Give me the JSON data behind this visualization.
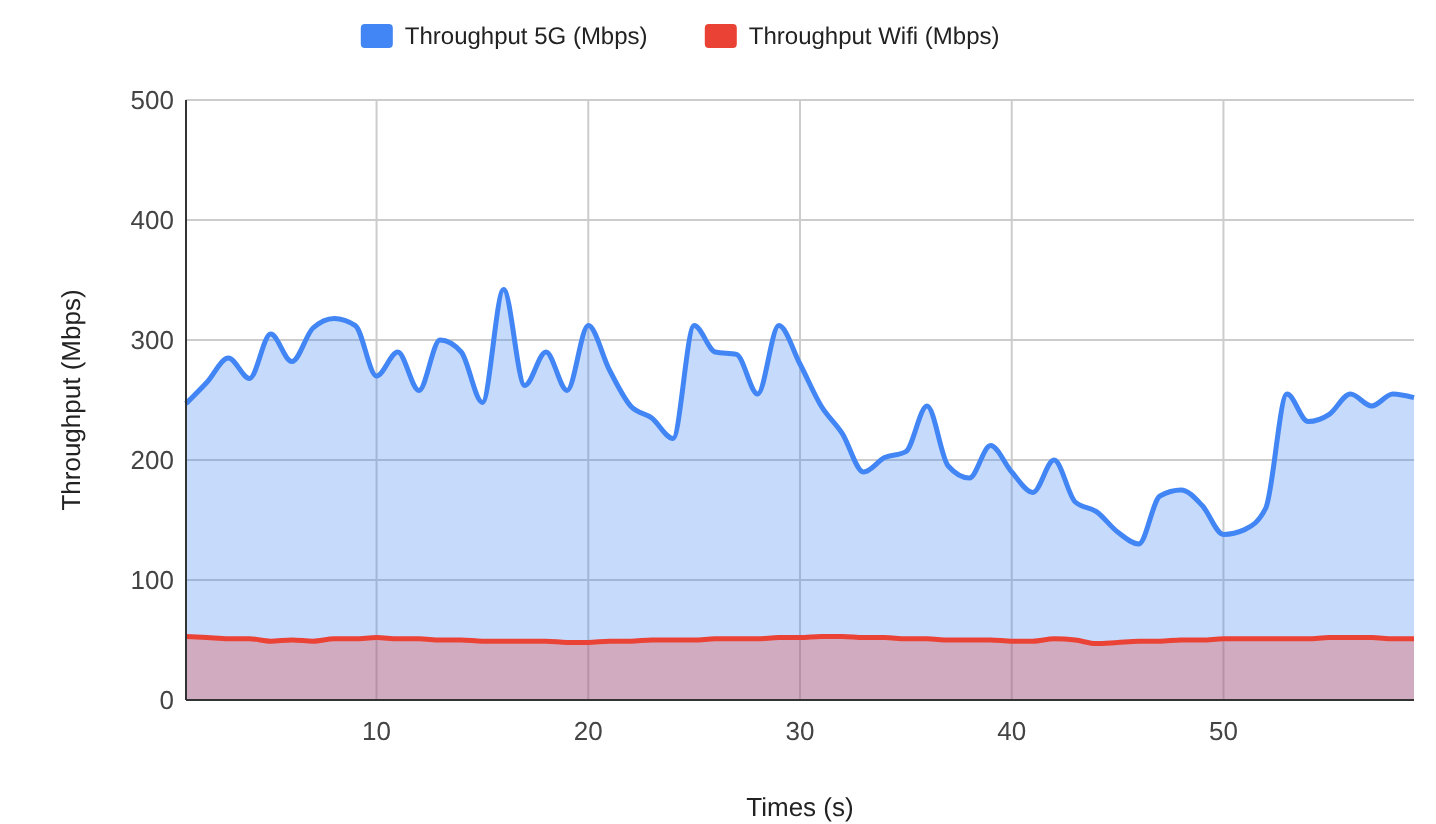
{
  "chart_data": {
    "type": "area",
    "xlabel": "Times (s)",
    "ylabel": "Throughput (Mbps)",
    "x": [
      1,
      2,
      3,
      4,
      5,
      6,
      7,
      8,
      9,
      10,
      11,
      12,
      13,
      14,
      15,
      16,
      17,
      18,
      19,
      20,
      21,
      22,
      23,
      24,
      25,
      26,
      27,
      28,
      29,
      30,
      31,
      32,
      33,
      34,
      35,
      36,
      37,
      38,
      39,
      40,
      41,
      42,
      43,
      44,
      45,
      46,
      47,
      48,
      49,
      50,
      51,
      52,
      53,
      54,
      55,
      56,
      57,
      58,
      59
    ],
    "series": [
      {
        "name": "Throughput 5G (Mbps)",
        "color": "#4285f4",
        "values": [
          247,
          265,
          285,
          268,
          305,
          282,
          310,
          318,
          312,
          270,
          290,
          258,
          300,
          290,
          248,
          342,
          262,
          290,
          258,
          312,
          275,
          245,
          235,
          218,
          312,
          290,
          288,
          255,
          312,
          280,
          245,
          222,
          190,
          202,
          207,
          245,
          195,
          185,
          212,
          190,
          173,
          200,
          165,
          157,
          140,
          130,
          170,
          175,
          162,
          138,
          142,
          160,
          255,
          232,
          238,
          255,
          245,
          255,
          252
        ]
      },
      {
        "name": "Throughput Wifi (Mbps)",
        "color": "#ea4335",
        "values": [
          53,
          52,
          51,
          51,
          49,
          50,
          49,
          51,
          51,
          52,
          51,
          51,
          50,
          50,
          49,
          49,
          49,
          49,
          48,
          48,
          49,
          49,
          50,
          50,
          50,
          51,
          51,
          51,
          52,
          52,
          53,
          53,
          52,
          52,
          51,
          51,
          50,
          50,
          50,
          49,
          49,
          51,
          50,
          47,
          48,
          49,
          49,
          50,
          50,
          51,
          51,
          51,
          51,
          51,
          52,
          52,
          52,
          51,
          51
        ]
      }
    ],
    "xlim": [
      1,
      59
    ],
    "xticks": [
      10,
      20,
      30,
      40,
      50
    ],
    "ylim": [
      0,
      500
    ],
    "yticks": [
      0,
      100,
      200,
      300,
      400,
      500
    ],
    "grid": true,
    "legend": "top"
  }
}
